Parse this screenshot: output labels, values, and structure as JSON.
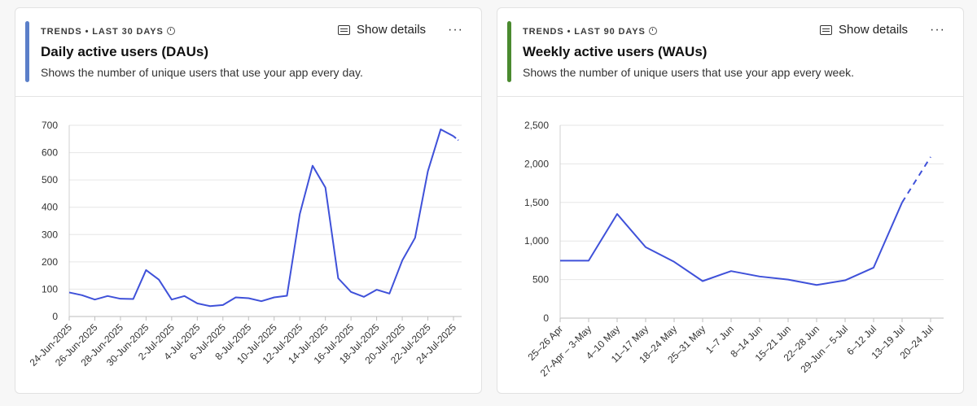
{
  "cards": [
    {
      "meta_label": "TRENDS • LAST 30 DAYS",
      "title": "Daily active users (DAUs)",
      "description": "Shows the number of unique users that use your app every day.",
      "show_details_label": "Show details",
      "more_label": "···",
      "accent_color": "#5b7fc9"
    },
    {
      "meta_label": "TRENDS • LAST 90 DAYS",
      "title": "Weekly active users (WAUs)",
      "description": "Shows the number of unique users that use your app every week.",
      "show_details_label": "Show details",
      "more_label": "···",
      "accent_color": "#4a8a2f"
    }
  ],
  "chart_data": [
    {
      "type": "line",
      "x": [
        "24-Jun-2025",
        "25-Jun-2025",
        "26-Jun-2025",
        "27-Jun-2025",
        "28-Jun-2025",
        "29-Jun-2025",
        "30-Jun-2025",
        "1-Jul-2025",
        "2-Jul-2025",
        "3-Jul-2025",
        "4-Jul-2025",
        "5-Jul-2025",
        "6-Jul-2025",
        "7-Jul-2025",
        "8-Jul-2025",
        "9-Jul-2025",
        "10-Jul-2025",
        "11-Jul-2025",
        "12-Jul-2025",
        "13-Jul-2025",
        "14-Jul-2025",
        "15-Jul-2025",
        "16-Jul-2025",
        "17-Jul-2025",
        "18-Jul-2025",
        "19-Jul-2025",
        "20-Jul-2025",
        "21-Jul-2025",
        "22-Jul-2025",
        "23-Jul-2025",
        "24-Jul-2025"
      ],
      "tick_labels": [
        "24-Jun-2025",
        "26-Jun-2025",
        "28-Jun-2025",
        "30-Jun-2025",
        "2-Jul-2025",
        "4-Jul-2025",
        "6-Jul-2025",
        "8-Jul-2025",
        "10-Jul-2025",
        "12-Jul-2025",
        "14-Jul-2025",
        "16-Jul-2025",
        "18-Jul-2025",
        "20-Jul-2025",
        "22-Jul-2025",
        "24-Jul-2025"
      ],
      "series": [
        {
          "values": [
            88,
            78,
            62,
            75,
            65,
            64,
            170,
            135,
            62,
            75,
            48,
            38,
            42,
            70,
            67,
            56,
            70,
            76,
            375,
            552,
            472,
            140,
            90,
            72,
            98,
            84,
            205,
            288,
            532,
            685,
            660
          ],
          "incomplete_last_point": 645
        }
      ],
      "ylim": [
        0,
        700
      ],
      "yticks": [
        0,
        100,
        200,
        300,
        400,
        500,
        600,
        700
      ],
      "ytick_labels": [
        "0",
        "100",
        "200",
        "300",
        "400",
        "500",
        "600",
        "700"
      ],
      "grid": true,
      "line_color": "#3f51d9"
    },
    {
      "type": "line",
      "x": [
        "25–26 Apr",
        "27-Apr – 3-May",
        "4–10 May",
        "11–17 May",
        "18–24 May",
        "25–31 May",
        "1–7 Jun",
        "8–14 Jun",
        "15–21 Jun",
        "22–28 Jun",
        "29-Jun – 5-Jul",
        "6–12 Jul",
        "13–19 Jul",
        "20–24 Jul"
      ],
      "tick_labels": [
        "25–26 Apr",
        "27-Apr – 3-May",
        "4–10 May",
        "11–17 May",
        "18–24 May",
        "25–31 May",
        "1–7 Jun",
        "8–14 Jun",
        "15–21 Jun",
        "22–28 Jun",
        "29-Jun – 5-Jul",
        "6–12 Jul",
        "13–19 Jul",
        "20–24 Jul"
      ],
      "series": [
        {
          "values": [
            745,
            745,
            1350,
            920,
            730,
            480,
            610,
            540,
            500,
            430,
            490,
            655,
            1500,
            2090
          ],
          "dashed_from_index": 12
        }
      ],
      "ylim": [
        0,
        2500
      ],
      "yticks": [
        0,
        500,
        1000,
        1500,
        2000,
        2500
      ],
      "ytick_labels": [
        "0",
        "500",
        "1,000",
        "1,500",
        "2,000",
        "2,500"
      ],
      "grid": true,
      "line_color": "#3f51d9"
    }
  ]
}
